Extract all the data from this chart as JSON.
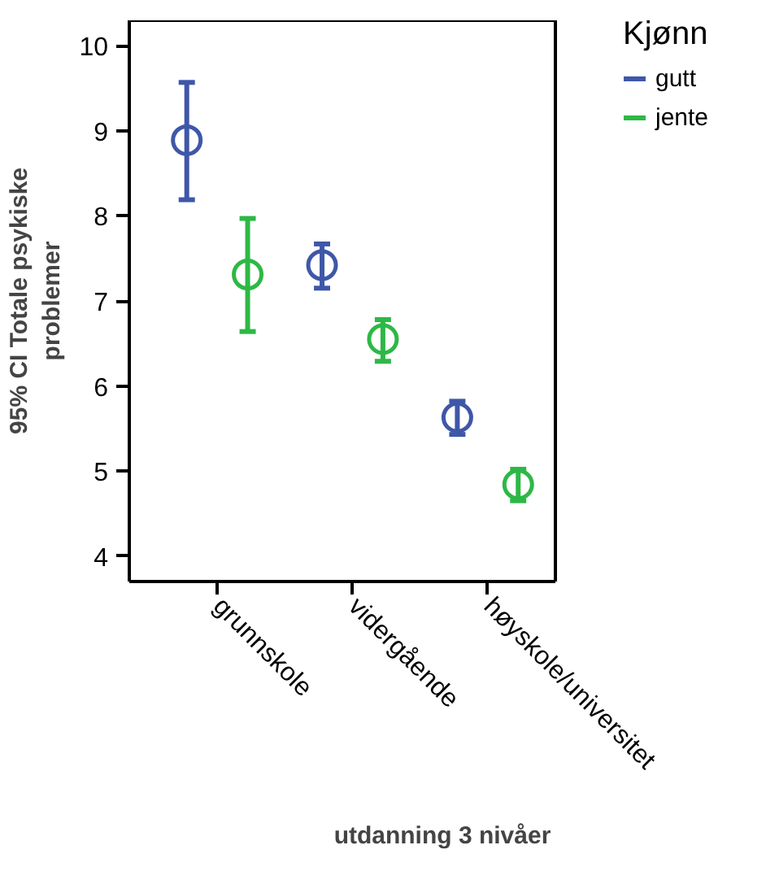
{
  "chart_data": {
    "type": "scatter",
    "xlabel": "utdanning 3 nivåer",
    "ylabel": "95% CI Totale psykiske problemer",
    "legend_title": "Kjønn",
    "categories": [
      "grunnskole",
      "vidergående",
      "høyskole/universitet"
    ],
    "series": [
      {
        "name": "gutt",
        "color": "#3f57a8",
        "values": [
          8.89,
          7.42,
          5.63
        ],
        "errors": [
          [
            8.19,
            9.57
          ],
          [
            7.15,
            7.67
          ],
          [
            5.43,
            5.82
          ]
        ]
      },
      {
        "name": "jente",
        "color": "#2db846",
        "values": [
          7.31,
          6.55,
          4.84
        ],
        "errors": [
          [
            6.64,
            7.97
          ],
          [
            6.29,
            6.78
          ],
          [
            4.65,
            5.02
          ]
        ]
      }
    ],
    "ylim": [
      3.7,
      10.3
    ],
    "yticks": [
      4,
      5,
      6,
      7,
      8,
      9,
      10
    ],
    "grid": false,
    "legend": "top right",
    "marker": "circle"
  }
}
